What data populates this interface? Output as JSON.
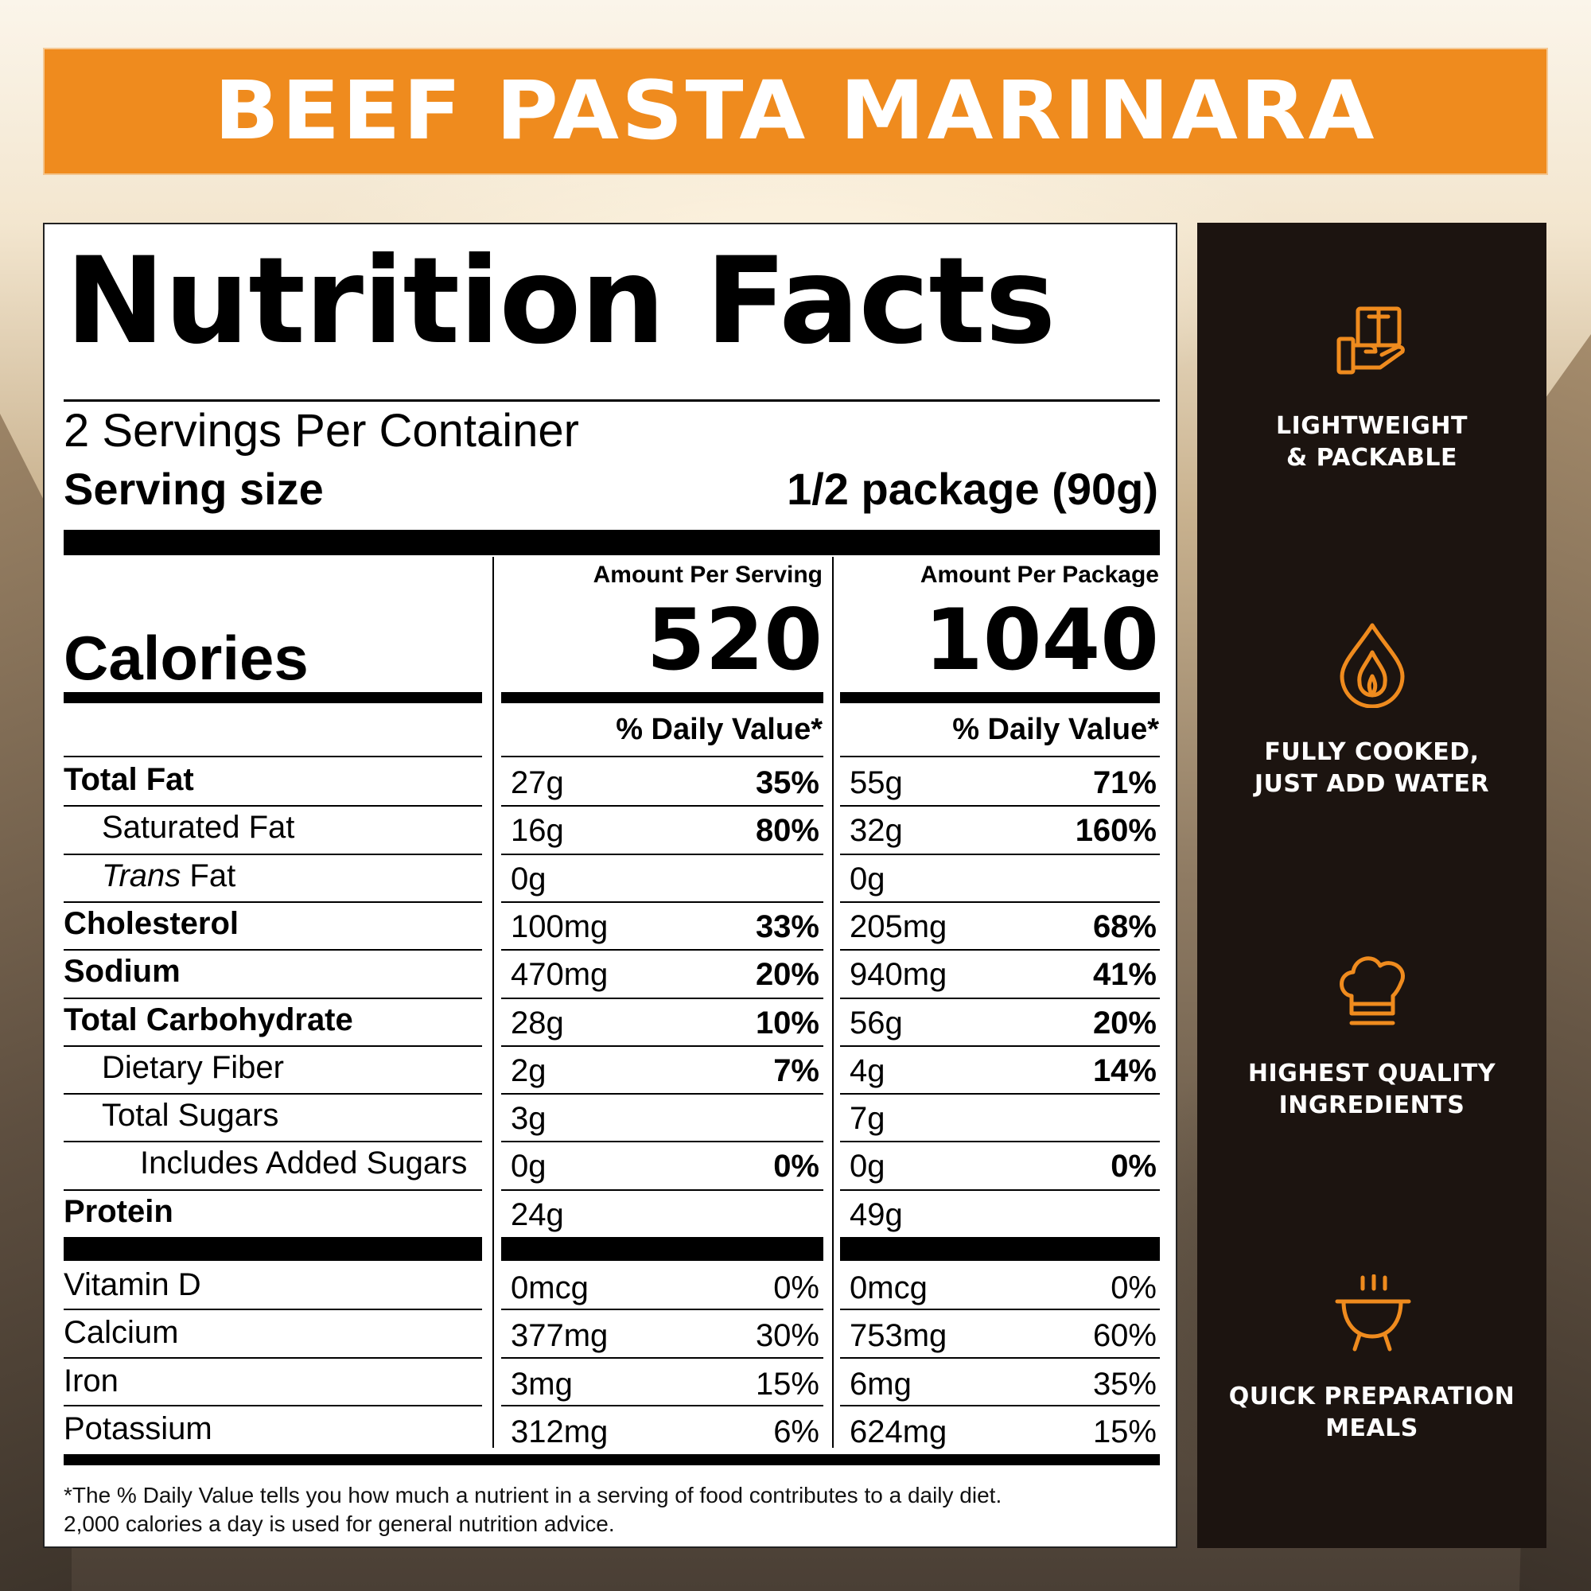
{
  "banner": {
    "title": "BEEF PASTA MARINARA"
  },
  "label": {
    "title": "Nutrition Facts",
    "servings_per_container": "2 Servings Per Container",
    "serving_size_label": "Serving size",
    "serving_size_value": "1/2 package (90g)",
    "col_serving_header": "Amount Per Serving",
    "col_package_header": "Amount Per Package",
    "calories_label": "Calories",
    "calories_serving": "520",
    "calories_package": "1040",
    "dv_header_serving": "% Daily Value*",
    "dv_header_package": "% Daily Value*",
    "rows": [
      {
        "label": "Total Fat",
        "serving_amt": "27g",
        "serving_pct": "35%",
        "package_amt": "55g",
        "package_pct": "71%"
      },
      {
        "label": "Saturated Fat",
        "serving_amt": "16g",
        "serving_pct": "80%",
        "package_amt": "32g",
        "package_pct": "160%"
      },
      {
        "label_italic": "Trans",
        "label": "Fat",
        "serving_amt": "0g",
        "serving_pct": "",
        "package_amt": "0g",
        "package_pct": ""
      },
      {
        "label": "Cholesterol",
        "serving_amt": "100mg",
        "serving_pct": "33%",
        "package_amt": "205mg",
        "package_pct": "68%"
      },
      {
        "label": "Sodium",
        "serving_amt": "470mg",
        "serving_pct": "20%",
        "package_amt": "940mg",
        "package_pct": "41%"
      },
      {
        "label": "Total Carbohydrate",
        "serving_amt": "28g",
        "serving_pct": "10%",
        "package_amt": "56g",
        "package_pct": "20%"
      },
      {
        "label": "Dietary Fiber",
        "serving_amt": "2g",
        "serving_pct": "7%",
        "package_amt": "4g",
        "package_pct": "14%"
      },
      {
        "label": "Total Sugars",
        "serving_amt": "3g",
        "serving_pct": "",
        "package_amt": "7g",
        "package_pct": ""
      },
      {
        "label": "Includes Added Sugars",
        "serving_amt": "0g",
        "serving_pct": "0%",
        "package_amt": "0g",
        "package_pct": "0%"
      },
      {
        "label": "Protein",
        "serving_amt": "24g",
        "serving_pct": "",
        "package_amt": "49g",
        "package_pct": ""
      }
    ],
    "vitamins": [
      {
        "label": "Vitamin D",
        "serving_amt": "0mcg",
        "serving_pct": "0%",
        "package_amt": "0mcg",
        "package_pct": "0%"
      },
      {
        "label": "Calcium",
        "serving_amt": "377mg",
        "serving_pct": "30%",
        "package_amt": "753mg",
        "package_pct": "60%"
      },
      {
        "label": "Iron",
        "serving_amt": "3mg",
        "serving_pct": "15%",
        "package_amt": "6mg",
        "package_pct": "35%"
      },
      {
        "label": "Potassium",
        "serving_amt": "312mg",
        "serving_pct": "6%",
        "package_amt": "624mg",
        "package_pct": "15%"
      }
    ],
    "footnote_line1": "*The % Daily Value tells you how much a nutrient in a serving of food contributes to a daily diet.",
    "footnote_line2": "2,000 calories a day is used for general nutrition advice."
  },
  "features": [
    {
      "icon": "package-hand-icon",
      "line1": "LIGHTWEIGHT",
      "line2": "& PACKABLE"
    },
    {
      "icon": "flame-drop-icon",
      "line1": "FULLY COOKED,",
      "line2": "JUST ADD WATER"
    },
    {
      "icon": "chef-hat-icon",
      "line1": "HIGHEST QUALITY",
      "line2": "INGREDIENTS"
    },
    {
      "icon": "cooking-pot-icon",
      "line1": "QUICK PREPARATION",
      "line2": "MEALS"
    }
  ],
  "colors": {
    "accent": "#ef8b1e",
    "dark_panel": "#1c1410",
    "label_bg": "#ffffff",
    "text": "#000000"
  }
}
